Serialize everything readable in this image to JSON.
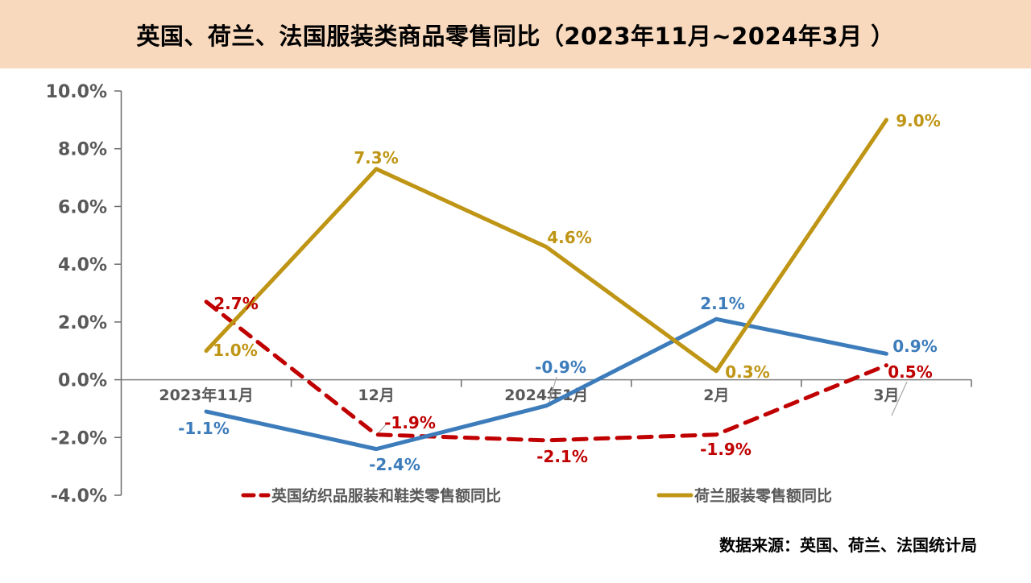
{
  "header": {
    "title": "英国、荷兰、法国服装类商品零售同比（2023年11月~2024年3月 ）"
  },
  "source_note": "数据来源：英国、荷兰、法国统计局",
  "colors": {
    "header_bg": "#F8D9BD",
    "red": "#C00000",
    "gold": "#BF9515",
    "blue": "#3D7CBB",
    "axis_text": "#595959",
    "axis_line": "#6A6A6A",
    "zero_line": "#808080",
    "leader": "#A6A6A6"
  },
  "chart_data": {
    "type": "line",
    "title": "英国、荷兰、法国服装类商品零售同比（2023年11月~2024年3月 ）",
    "categories": [
      "2023年11月",
      "12月",
      "2024年1月",
      "2月",
      "3月"
    ],
    "y_axis": {
      "min": -4.0,
      "max": 10.0,
      "step": 2.0,
      "tick_labels": [
        "10.0%",
        "8.0%",
        "6.0%",
        "4.0%",
        "2.0%",
        "0.0%",
        "-2.0%",
        "-4.0%"
      ]
    },
    "grid": "off",
    "legend_position": "bottom",
    "series": [
      {
        "id": "uk-red-dashed",
        "legend_label": "英国纺织品服装和鞋类零售额同比",
        "color": "#C00000",
        "style": "dashed",
        "values": [
          2.7,
          -1.9,
          -2.1,
          -1.9,
          0.5
        ],
        "point_labels": [
          "2.7%",
          "-1.9%",
          "-2.1%",
          "-1.9%",
          "0.5%"
        ]
      },
      {
        "id": "nl-gold-solid",
        "legend_label": "荷兰服装零售额同比",
        "color": "#BF9515",
        "style": "solid",
        "values": [
          1.0,
          7.3,
          4.6,
          0.3,
          9.0
        ],
        "point_labels": [
          "1.0%",
          "7.3%",
          "4.6%",
          "0.3%",
          "9.0%"
        ]
      },
      {
        "id": "blue-solid",
        "legend_label": "",
        "color": "#3D7CBB",
        "style": "solid",
        "values": [
          -1.1,
          -2.4,
          -0.9,
          2.1,
          0.9
        ],
        "point_labels": [
          "-1.1%",
          "-2.4%",
          "-0.9%",
          "2.1%",
          "0.9%"
        ]
      }
    ],
    "legend": [
      {
        "series_id": "uk-red-dashed",
        "label": "英国纺织品服装和鞋类零售额同比"
      },
      {
        "series_id": "nl-gold-solid",
        "label": "荷兰服装零售额同比"
      }
    ]
  }
}
